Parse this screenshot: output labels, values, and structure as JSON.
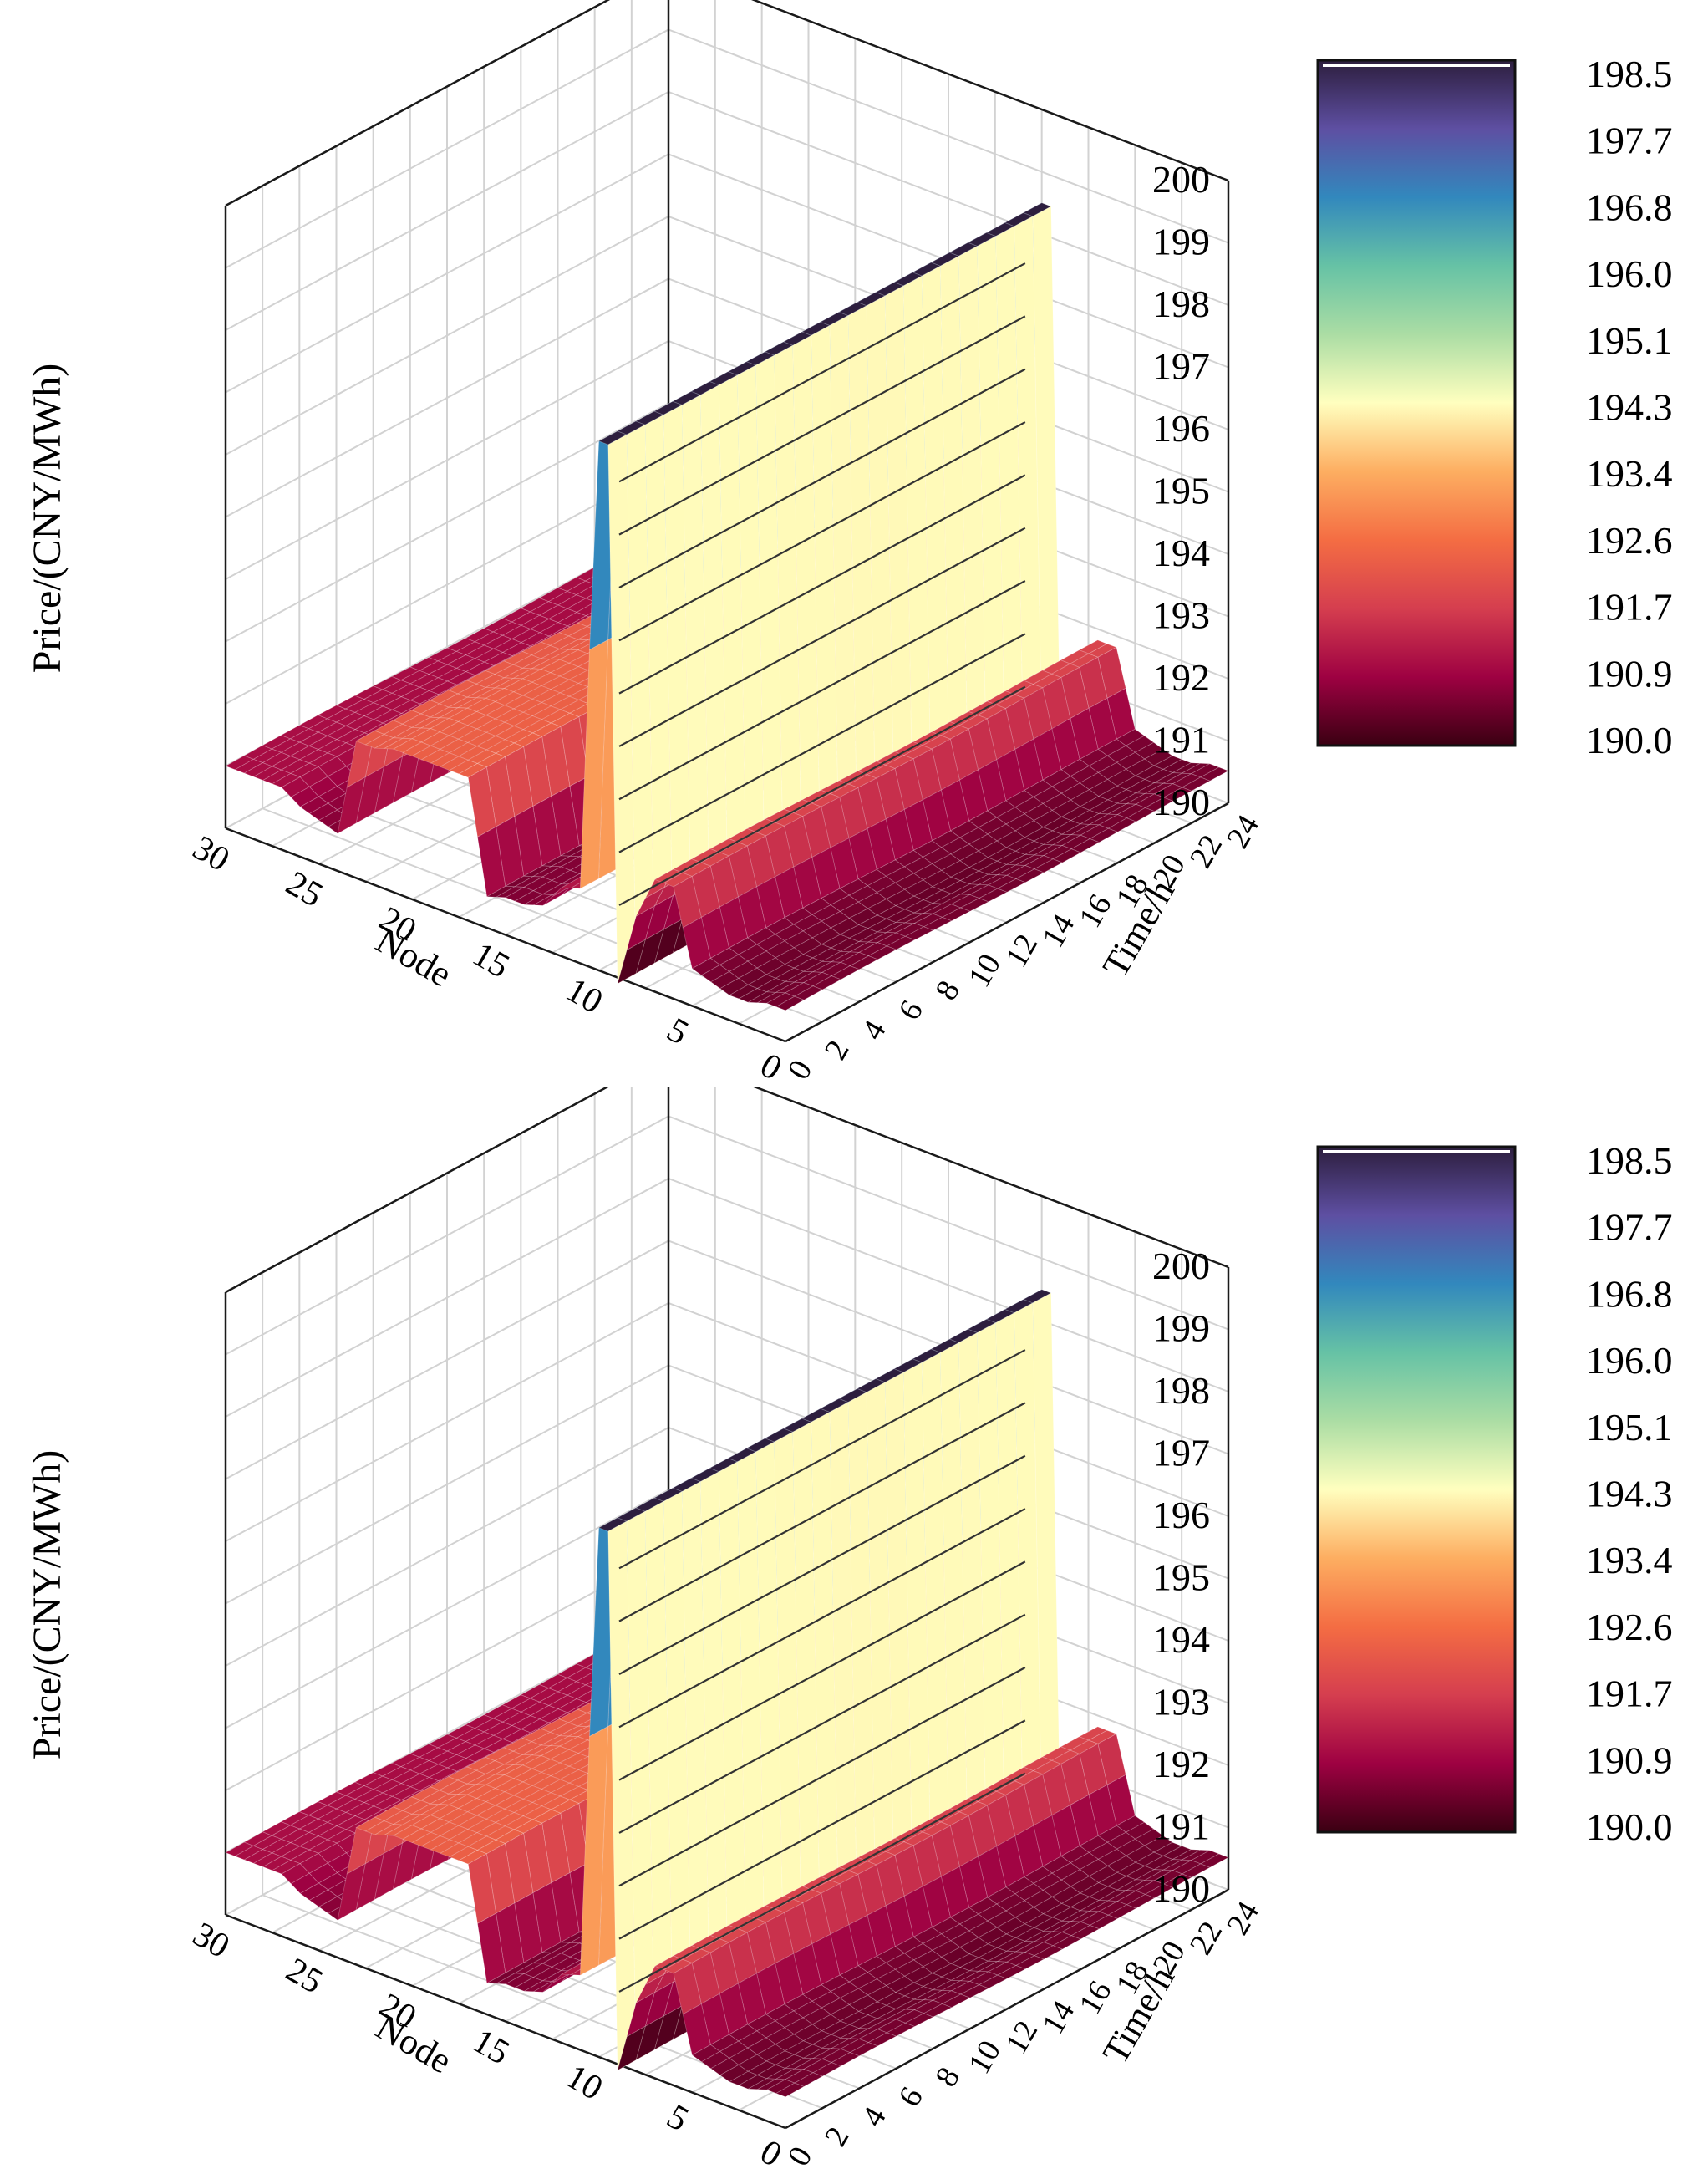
{
  "chart_data": [
    {
      "type": "surface3d",
      "zlabel": "Price/(CNY/MWh)",
      "xlabel": "Node",
      "ylabel": "Time/h",
      "zlim": [
        190,
        200
      ],
      "z_ticks": [
        "190",
        "191",
        "192",
        "193",
        "194",
        "195",
        "196",
        "197",
        "198",
        "199",
        "200"
      ],
      "node_ticks": [
        "0",
        "5",
        "10",
        "15",
        "20",
        "25",
        "30"
      ],
      "time_ticks": [
        "0",
        "2",
        "4",
        "6",
        "8",
        "10",
        "12",
        "14",
        "16",
        "18",
        "20",
        "22",
        "24"
      ],
      "colorbar": {
        "ticks": [
          "198.5",
          "197.7",
          "196.8",
          "196.0",
          "195.1",
          "194.3",
          "193.4",
          "192.6",
          "191.7",
          "190.9",
          "190.0"
        ],
        "range": [
          190.0,
          198.5
        ]
      },
      "colormap": [
        "#2d1e3e",
        "#5e4fa2",
        "#3288bd",
        "#66c2a5",
        "#abdda4",
        "#ffffbf",
        "#fdae61",
        "#f46d43",
        "#d53e4f",
        "#9e0142",
        "#3a0012"
      ],
      "grid": true,
      "nodes": [
        0,
        1,
        2,
        3,
        4,
        5,
        6,
        7,
        8,
        9,
        10,
        11,
        12,
        13,
        14,
        15,
        16,
        17,
        18,
        19,
        20,
        21,
        22,
        23,
        24,
        25,
        26,
        27,
        28,
        29,
        30
      ],
      "node_price_profile": [
        190.5,
        190.5,
        190.4,
        190.4,
        190.5,
        190.6,
        191.8,
        191.8,
        191.1,
        189.9,
        191.1,
        191.2,
        191.1,
        190.7,
        190.6,
        190.6,
        190.5,
        192.3,
        192.3,
        192.3,
        192.3,
        192.3,
        192.2,
        192.2,
        190.6,
        190.7,
        190.8,
        191.0,
        191.0,
        191.0,
        191.0
      ],
      "high_ridge": {
        "node": 9.5,
        "price": 198.5
      }
    },
    {
      "type": "surface3d",
      "zlabel": "Price/(CNY/MWh)",
      "xlabel": "Node",
      "ylabel": "Time/h",
      "zlim": [
        190,
        200
      ],
      "z_ticks": [
        "190",
        "191",
        "192",
        "193",
        "194",
        "195",
        "196",
        "197",
        "198",
        "199",
        "200"
      ],
      "node_ticks": [
        "0",
        "5",
        "10",
        "15",
        "20",
        "25",
        "30"
      ],
      "time_ticks": [
        "0",
        "2",
        "4",
        "6",
        "8",
        "10",
        "12",
        "14",
        "16",
        "18",
        "20",
        "22",
        "24"
      ],
      "colorbar": {
        "ticks": [
          "198.5",
          "197.7",
          "196.8",
          "196.0",
          "195.1",
          "194.3",
          "193.4",
          "192.6",
          "191.7",
          "190.9",
          "190.0"
        ],
        "range": [
          190.0,
          198.5
        ]
      },
      "colormap": [
        "#2d1e3e",
        "#5e4fa2",
        "#3288bd",
        "#66c2a5",
        "#abdda4",
        "#ffffbf",
        "#fdae61",
        "#f46d43",
        "#d53e4f",
        "#9e0142",
        "#3a0012"
      ],
      "grid": true,
      "nodes": [
        0,
        1,
        2,
        3,
        4,
        5,
        6,
        7,
        8,
        9,
        10,
        11,
        12,
        13,
        14,
        15,
        16,
        17,
        18,
        19,
        20,
        21,
        22,
        23,
        24,
        25,
        26,
        27,
        28,
        29,
        30
      ],
      "node_price_profile": [
        190.5,
        190.5,
        190.4,
        190.4,
        190.5,
        190.6,
        191.8,
        191.8,
        191.1,
        189.9,
        191.1,
        191.2,
        191.1,
        190.7,
        190.6,
        190.6,
        190.5,
        192.3,
        192.3,
        192.3,
        192.3,
        192.3,
        192.2,
        192.2,
        190.6,
        190.7,
        190.8,
        191.0,
        191.0,
        191.0,
        191.0
      ],
      "high_ridge": {
        "node": 9.5,
        "price": 198.5
      }
    }
  ]
}
